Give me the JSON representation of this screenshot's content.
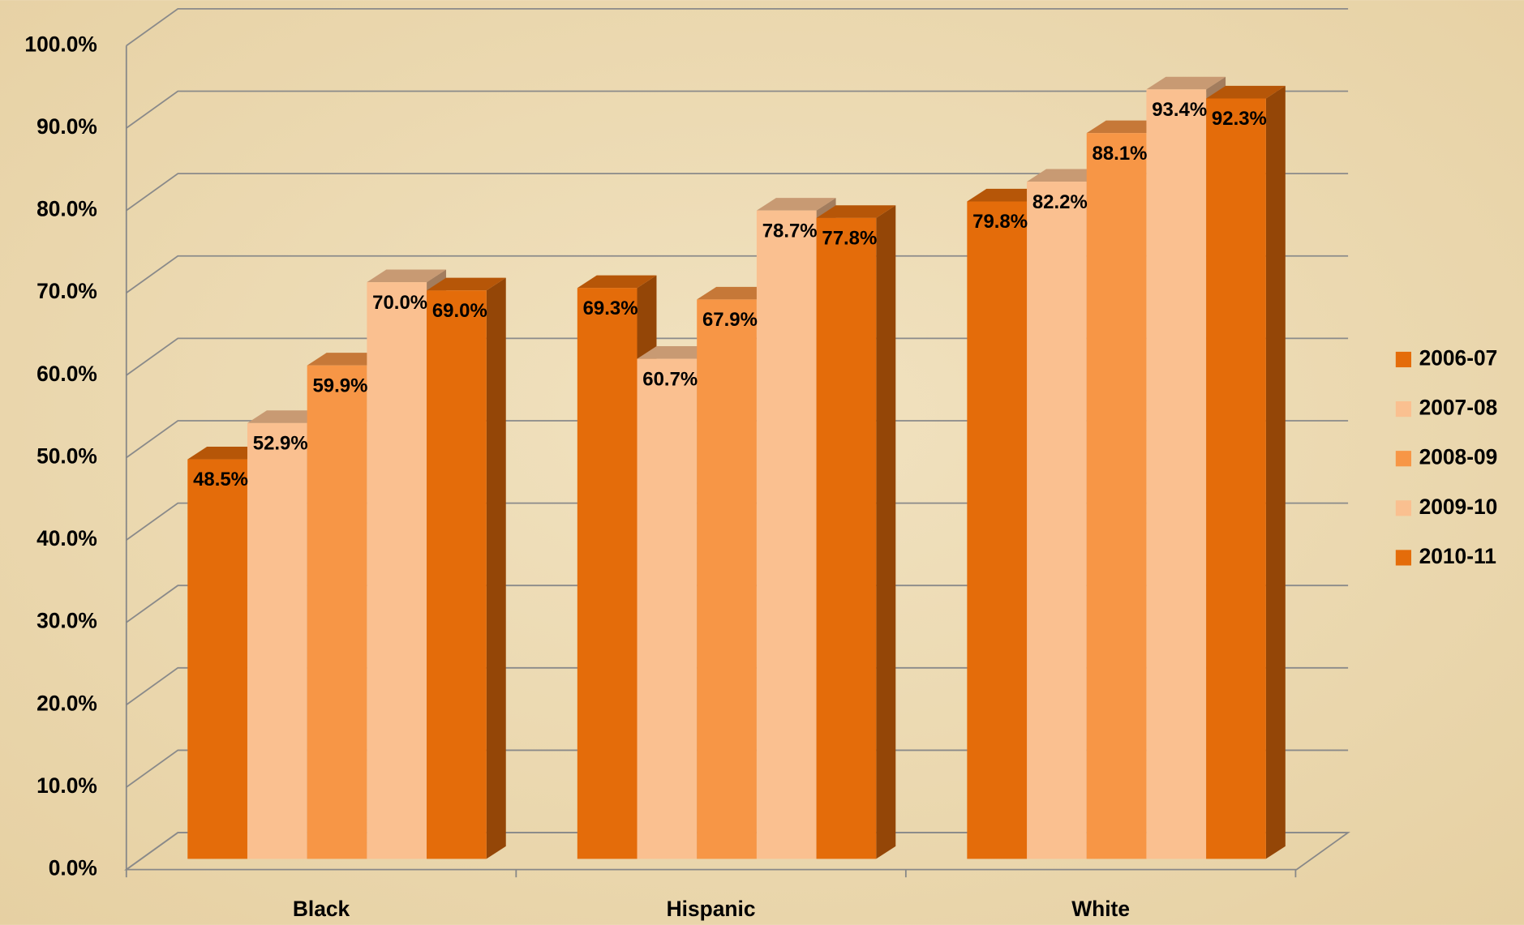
{
  "chart_data": {
    "type": "bar",
    "categories": [
      "Black",
      "Hispanic",
      "White"
    ],
    "series": [
      {
        "name": "2006-07",
        "color": "#e46c0a",
        "values": [
          48.5,
          69.3,
          79.8
        ],
        "value_labels": [
          "48.5%",
          "69.3%",
          "79.8%"
        ]
      },
      {
        "name": "2007-08",
        "color": "#fac090",
        "values": [
          52.9,
          60.7,
          82.2
        ],
        "value_labels": [
          "52.9%",
          "60.7%",
          "82.2%"
        ]
      },
      {
        "name": "2008-09",
        "color": "#f79646",
        "values": [
          59.9,
          67.9,
          88.1
        ],
        "value_labels": [
          "59.9%",
          "67.9%",
          "88.1%"
        ]
      },
      {
        "name": "2009-10",
        "color": "#fac090",
        "values": [
          70.0,
          78.7,
          93.4
        ],
        "value_labels": [
          "70.0%",
          "78.7%",
          "93.4%"
        ]
      },
      {
        "name": "2010-11",
        "color": "#e46c0a",
        "values": [
          69.0,
          77.8,
          92.3
        ],
        "value_labels": [
          "69.0%",
          "77.8%",
          "92.3%"
        ]
      }
    ],
    "ylim": [
      0,
      100
    ],
    "yticks": [
      {
        "value": 0,
        "label": "0.0%"
      },
      {
        "value": 10,
        "label": "10.0%"
      },
      {
        "value": 20,
        "label": "20.0%"
      },
      {
        "value": 30,
        "label": "30.0%"
      },
      {
        "value": 40,
        "label": "40.0%"
      },
      {
        "value": 50,
        "label": "50.0%"
      },
      {
        "value": 60,
        "label": "60.0%"
      },
      {
        "value": 70,
        "label": "70.0%"
      },
      {
        "value": 80,
        "label": "80.0%"
      },
      {
        "value": 90,
        "label": "90.0%"
      },
      {
        "value": 100,
        "label": "100.0%"
      }
    ],
    "grid": true,
    "legend": "right"
  }
}
